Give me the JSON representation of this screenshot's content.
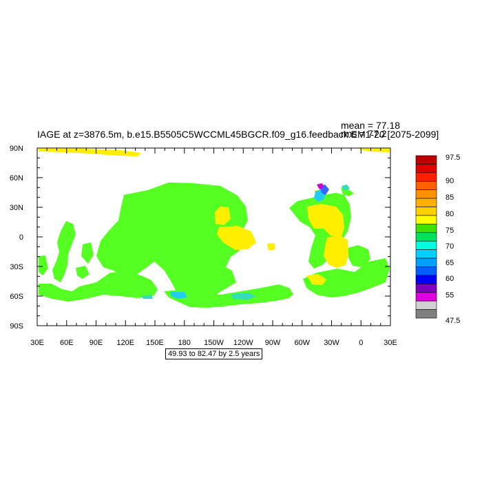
{
  "title": "IAGE at z=3876.5m, b.e15.B5505C5WCCML45BGCR.f09_g16.feedback.EM1-20 [2075-2099]",
  "stats": {
    "mean": "mean = 77.18",
    "rms": "rms = 77.2"
  },
  "range_note": "49.93 to 82.47 by 2.5 years",
  "axes": {
    "x_ticks": [
      "30E",
      "60E",
      "90E",
      "120E",
      "150E",
      "180",
      "150W",
      "120W",
      "90W",
      "60W",
      "30W",
      "0",
      "30E"
    ],
    "y_ticks": [
      "90N",
      "60N",
      "30N",
      "0",
      "30S",
      "60S",
      "90S"
    ]
  },
  "colorbar": {
    "labels": [
      "97.5",
      "90",
      "85",
      "80",
      "75",
      "70",
      "65",
      "60",
      "55",
      "47.5"
    ],
    "colors": [
      "#c00000",
      "#e00000",
      "#ff2000",
      "#ff6000",
      "#ff9000",
      "#ffb000",
      "#ffd000",
      "#ffff00",
      "#40e000",
      "#00e060",
      "#00ffe0",
      "#00d0ff",
      "#00a0ff",
      "#0060ff",
      "#0000ff",
      "#8000c0",
      "#e000e0",
      "#d0d0d0",
      "#808080"
    ]
  },
  "colors": {
    "background": "#ffffff",
    "dominant_field": "#55ff2a",
    "high_field": "#ffee00",
    "low_field": "#22ccee"
  }
}
